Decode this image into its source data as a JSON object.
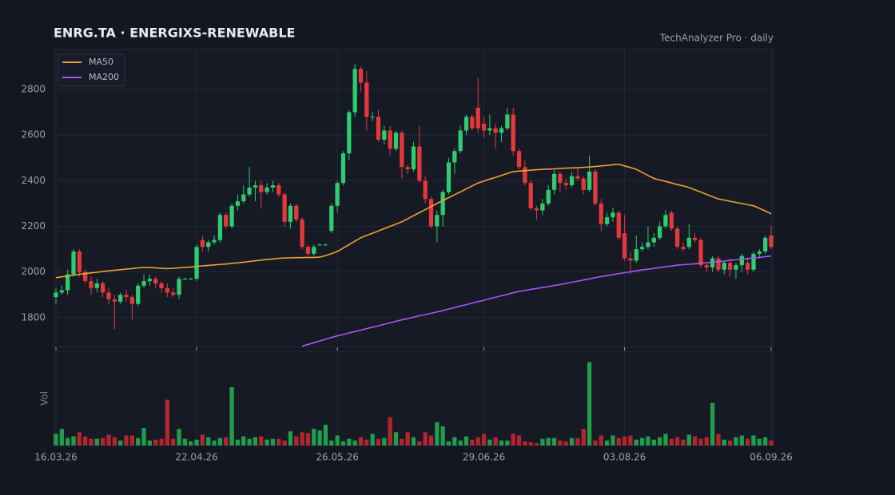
{
  "chart_data": {
    "type": "candlestick",
    "title": "ENRG.TA  ·  ENERGIXS-RENEWABLE",
    "subtitle": "TechAnalyzer Pro · daily",
    "up_color": "#2ecc71",
    "down_color": "#e5383b",
    "candles": [
      [
        1890,
        1930,
        1860,
        1910
      ],
      [
        1910,
        1940,
        1900,
        1920
      ],
      [
        1920,
        2010,
        1900,
        1990
      ],
      [
        1990,
        2100,
        1980,
        2090
      ],
      [
        2090,
        2100,
        1980,
        2000
      ],
      [
        2000,
        2010,
        1950,
        1960
      ],
      [
        1960,
        1980,
        1900,
        1930
      ],
      [
        1930,
        1970,
        1910,
        1950
      ],
      [
        1950,
        1960,
        1890,
        1910
      ],
      [
        1910,
        1930,
        1860,
        1880
      ],
      [
        1880,
        1900,
        1750,
        1870
      ],
      [
        1870,
        1910,
        1860,
        1900
      ],
      [
        1900,
        1920,
        1870,
        1890
      ],
      [
        1890,
        1900,
        1790,
        1860
      ],
      [
        1860,
        1950,
        1850,
        1940
      ],
      [
        1940,
        1990,
        1930,
        1960
      ],
      [
        1960,
        1990,
        1940,
        1970
      ],
      [
        1970,
        1980,
        1930,
        1950
      ],
      [
        1950,
        1960,
        1910,
        1930
      ],
      [
        1930,
        1950,
        1890,
        1910
      ],
      [
        1910,
        1930,
        1890,
        1900
      ],
      [
        1900,
        1980,
        1880,
        1970
      ],
      [
        1970,
        1975,
        1965,
        1970
      ],
      [
        1970,
        1975,
        1965,
        1970
      ],
      [
        1970,
        2120,
        1960,
        2110
      ],
      [
        2140,
        2160,
        2090,
        2110
      ],
      [
        2110,
        2140,
        2090,
        2130
      ],
      [
        2130,
        2160,
        2120,
        2140
      ],
      [
        2140,
        2260,
        2130,
        2250
      ],
      [
        2250,
        2260,
        2190,
        2200
      ],
      [
        2200,
        2300,
        2190,
        2290
      ],
      [
        2290,
        2340,
        2270,
        2310
      ],
      [
        2310,
        2380,
        2300,
        2340
      ],
      [
        2340,
        2460,
        2330,
        2370
      ],
      [
        2370,
        2400,
        2310,
        2380
      ],
      [
        2380,
        2400,
        2280,
        2350
      ],
      [
        2350,
        2390,
        2340,
        2370
      ],
      [
        2370,
        2400,
        2350,
        2380
      ],
      [
        2380,
        2390,
        2330,
        2340
      ],
      [
        2340,
        2350,
        2200,
        2220
      ],
      [
        2220,
        2300,
        2190,
        2290
      ],
      [
        2290,
        2300,
        2220,
        2230
      ],
      [
        2230,
        2240,
        2100,
        2110
      ],
      [
        2110,
        2120,
        2070,
        2080
      ],
      [
        2080,
        2120,
        2070,
        2110
      ],
      [
        2120,
        2125,
        2115,
        2120
      ],
      [
        2120,
        2125,
        2115,
        2120
      ],
      [
        2180,
        2300,
        2170,
        2290
      ],
      [
        2290,
        2400,
        2260,
        2390
      ],
      [
        2390,
        2530,
        2380,
        2520
      ],
      [
        2520,
        2710,
        2490,
        2700
      ],
      [
        2700,
        2910,
        2680,
        2890
      ],
      [
        2890,
        2900,
        2790,
        2830
      ],
      [
        2830,
        2880,
        2620,
        2680
      ],
      [
        2680,
        2700,
        2660,
        2680
      ],
      [
        2680,
        2710,
        2570,
        2580
      ],
      [
        2580,
        2640,
        2560,
        2620
      ],
      [
        2620,
        2640,
        2510,
        2540
      ],
      [
        2540,
        2620,
        2530,
        2610
      ],
      [
        2610,
        2620,
        2410,
        2460
      ],
      [
        2460,
        2470,
        2430,
        2450
      ],
      [
        2450,
        2570,
        2440,
        2550
      ],
      [
        2550,
        2640,
        2390,
        2400
      ],
      [
        2400,
        2420,
        2300,
        2320
      ],
      [
        2320,
        2330,
        2190,
        2200
      ],
      [
        2200,
        2270,
        2130,
        2250
      ],
      [
        2250,
        2360,
        2200,
        2350
      ],
      [
        2350,
        2500,
        2340,
        2480
      ],
      [
        2480,
        2540,
        2430,
        2530
      ],
      [
        2530,
        2640,
        2520,
        2620
      ],
      [
        2620,
        2690,
        2600,
        2680
      ],
      [
        2680,
        2690,
        2620,
        2630
      ],
      [
        2720,
        2850,
        2610,
        2630
      ],
      [
        2650,
        2680,
        2590,
        2620
      ],
      [
        2620,
        2690,
        2600,
        2630
      ],
      [
        2630,
        2650,
        2540,
        2610
      ],
      [
        2610,
        2640,
        2570,
        2630
      ],
      [
        2630,
        2720,
        2620,
        2690
      ],
      [
        2690,
        2720,
        2510,
        2530
      ],
      [
        2530,
        2540,
        2450,
        2460
      ],
      [
        2460,
        2490,
        2380,
        2390
      ],
      [
        2390,
        2400,
        2270,
        2280
      ],
      [
        2280,
        2290,
        2230,
        2270
      ],
      [
        2270,
        2320,
        2250,
        2300
      ],
      [
        2300,
        2380,
        2290,
        2360
      ],
      [
        2360,
        2450,
        2340,
        2430
      ],
      [
        2430,
        2440,
        2350,
        2390
      ],
      [
        2390,
        2410,
        2360,
        2380
      ],
      [
        2380,
        2440,
        2370,
        2420
      ],
      [
        2420,
        2460,
        2400,
        2410
      ],
      [
        2410,
        2420,
        2340,
        2360
      ],
      [
        2360,
        2510,
        2350,
        2440
      ],
      [
        2440,
        2450,
        2290,
        2300
      ],
      [
        2300,
        2320,
        2180,
        2210
      ],
      [
        2210,
        2260,
        2200,
        2240
      ],
      [
        2240,
        2280,
        2220,
        2260
      ],
      [
        2260,
        2270,
        2140,
        2150
      ],
      [
        2170,
        2250,
        2050,
        2060
      ],
      [
        2060,
        2090,
        1990,
        2050
      ],
      [
        2050,
        2160,
        2040,
        2100
      ],
      [
        2100,
        2130,
        2090,
        2110
      ],
      [
        2110,
        2200,
        2100,
        2130
      ],
      [
        2130,
        2170,
        2110,
        2150
      ],
      [
        2150,
        2220,
        2140,
        2200
      ],
      [
        2200,
        2270,
        2190,
        2250
      ],
      [
        2260,
        2270,
        2180,
        2190
      ],
      [
        2190,
        2200,
        2100,
        2110
      ],
      [
        2110,
        2130,
        2090,
        2100
      ],
      [
        2110,
        2210,
        2100,
        2150
      ],
      [
        2150,
        2170,
        2130,
        2140
      ],
      [
        2140,
        2150,
        2020,
        2030
      ],
      [
        2030,
        2040,
        2000,
        2020
      ],
      [
        2020,
        2070,
        2000,
        2060
      ],
      [
        2060,
        2070,
        2000,
        2010
      ],
      [
        2010,
        2050,
        1990,
        2040
      ],
      [
        2040,
        2060,
        1980,
        2010
      ],
      [
        2010,
        2040,
        1970,
        2030
      ],
      [
        2030,
        2080,
        2000,
        2070
      ],
      [
        2040,
        2060,
        1990,
        2010
      ],
      [
        2010,
        2090,
        2000,
        2080
      ],
      [
        2080,
        2100,
        2060,
        2090
      ],
      [
        2090,
        2160,
        2080,
        2150
      ],
      [
        2160,
        2200,
        2100,
        2110
      ]
    ],
    "series": [
      {
        "name": "MA50",
        "color": "#f0a030",
        "values": [
          1975,
          1979,
          1982,
          1986,
          1990,
          1993,
          1996,
          1999,
          2002,
          2005,
          2008,
          2010,
          2013,
          2015,
          2018,
          2020,
          2019,
          2018,
          2016,
          2015,
          2016,
          2018,
          2020,
          2022,
          2025,
          2027,
          2029,
          2031,
          2033,
          2035,
          2038,
          2040,
          2043,
          2046,
          2049,
          2052,
          2055,
          2057,
          2060,
          2061,
          2062,
          2063,
          2063,
          2064,
          2064,
          2065,
          2072,
          2080,
          2090,
          2105,
          2120,
          2135,
          2150,
          2160,
          2170,
          2180,
          2190,
          2200,
          2210,
          2220,
          2233,
          2247,
          2260,
          2273,
          2287,
          2300,
          2313,
          2326,
          2339,
          2351,
          2364,
          2377,
          2390,
          2398,
          2407,
          2415,
          2423,
          2432,
          2440,
          2442,
          2444,
          2446,
          2448,
          2450,
          2451,
          2452,
          2454,
          2455,
          2456,
          2457,
          2459,
          2460,
          2462,
          2465,
          2467,
          2470,
          2472,
          2465,
          2458,
          2450,
          2437,
          2423,
          2410,
          2403,
          2397,
          2390,
          2383,
          2377,
          2370,
          2360,
          2350,
          2340,
          2330,
          2320,
          2315,
          2310,
          2305,
          2300,
          2295,
          2290,
          2279,
          2267,
          2255
        ]
      },
      {
        "name": "MA200",
        "color": "#a855f7",
        "values": [
          null,
          null,
          null,
          null,
          null,
          null,
          null,
          null,
          null,
          null,
          null,
          null,
          null,
          null,
          null,
          null,
          null,
          null,
          null,
          null,
          null,
          null,
          null,
          null,
          null,
          null,
          null,
          null,
          null,
          null,
          null,
          null,
          null,
          null,
          null,
          null,
          null,
          null,
          null,
          null,
          null,
          null,
          1675,
          1683,
          1690,
          1698,
          1705,
          1713,
          1720,
          1726,
          1733,
          1739,
          1745,
          1752,
          1758,
          1764,
          1771,
          1777,
          1784,
          1790,
          1796,
          1802,
          1808,
          1813,
          1819,
          1825,
          1831,
          1838,
          1844,
          1851,
          1857,
          1864,
          1870,
          1876,
          1883,
          1889,
          1896,
          1902,
          1909,
          1915,
          1919,
          1924,
          1928,
          1932,
          1936,
          1941,
          1945,
          1950,
          1955,
          1960,
          1965,
          1970,
          1975,
          1980,
          1984,
          1988,
          1993,
          1997,
          2001,
          2005,
          2009,
          2012,
          2016,
          2019,
          2023,
          2026,
          2030,
          2032,
          2034,
          2036,
          2039,
          2041,
          2043,
          2045,
          2048,
          2051,
          2053,
          2056,
          2059,
          2062,
          2064,
          2067,
          2070
        ]
      }
    ],
    "volume": {
      "label": "Vol",
      "ylim": [
        0,
        113
      ],
      "up_color": "#1f9e4c",
      "down_color": "#b3262e",
      "values": [
        14,
        20,
        9,
        11,
        16,
        11,
        8,
        8,
        9,
        13,
        10,
        6,
        12,
        12,
        9,
        21,
        6,
        7,
        8,
        55,
        8,
        20,
        8,
        5,
        7,
        13,
        10,
        6,
        9,
        10,
        70,
        7,
        11,
        8,
        10,
        11,
        7,
        8,
        8,
        6,
        17,
        11,
        16,
        15,
        20,
        18,
        25,
        6,
        12,
        5,
        8,
        6,
        10,
        7,
        14,
        8,
        9,
        34,
        16,
        8,
        16,
        10,
        5,
        16,
        12,
        28,
        23,
        5,
        10,
        6,
        11,
        7,
        10,
        14,
        7,
        10,
        6,
        6,
        14,
        12,
        5,
        4,
        3,
        8,
        9,
        9,
        6,
        5,
        9,
        9,
        20,
        100,
        6,
        12,
        6,
        12,
        9,
        11,
        12,
        7,
        9,
        11,
        7,
        10,
        14,
        8,
        10,
        7,
        13,
        11,
        8,
        10,
        51,
        14,
        7,
        6,
        10,
        12,
        8,
        12,
        8,
        10,
        6
      ]
    },
    "ylim": [
      1670,
      2975
    ],
    "yticks": [
      1800,
      2000,
      2200,
      2400,
      2600,
      2800
    ],
    "xlim": [
      0,
      122
    ],
    "xticks": [
      {
        "value": 0,
        "label": "16.03.26"
      },
      {
        "value": 24,
        "label": "22.04.26"
      },
      {
        "value": 48,
        "label": "26.05.26"
      },
      {
        "value": 73,
        "label": "29.06.26"
      },
      {
        "value": 97,
        "label": "03.08.26"
      },
      {
        "value": 122,
        "label": "06.09.26"
      }
    ],
    "grid": true,
    "legend": "upper left"
  }
}
